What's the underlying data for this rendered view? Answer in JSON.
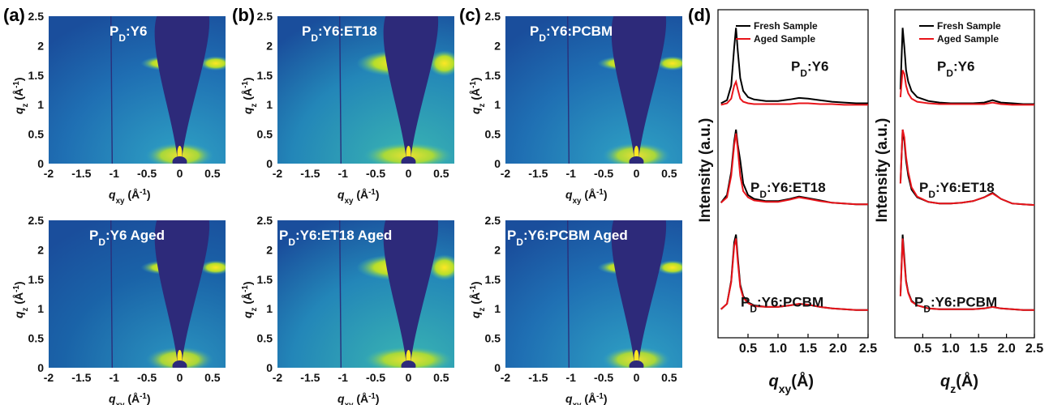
{
  "panel_labels": {
    "a": "(a)",
    "b": "(b)",
    "c": "(c)",
    "d": "(d)"
  },
  "map_axes": {
    "x_ticks": [
      "-2",
      "-1.5",
      "-1",
      "-0.5",
      "0",
      "0.5"
    ],
    "y_ticks": [
      "0",
      "0.5",
      "1",
      "1.5",
      "2",
      "2.5"
    ],
    "xlabel_main": "q",
    "xlabel_sub": "xy",
    "xlabel_unit": " (Å",
    "xlabel_exp": "-1",
    "xlabel_close": ")",
    "ylabel_main": "q",
    "ylabel_sub": "z",
    "ylabel_unit": " (Å",
    "ylabel_exp": "-1",
    "ylabel_close": ")"
  },
  "maps": [
    {
      "title_a": "P",
      "title_sub": "D",
      "title_b": ":Y6",
      "colors": {
        "bg": "#1f6fb3",
        "edge": "#2fa3c4",
        "mask": "#2d2a7a",
        "hot": "#fde724"
      }
    },
    {
      "title_a": "P",
      "title_sub": "D",
      "title_b": ":Y6:ET18",
      "colors": {
        "bg": "#2386b8",
        "edge": "#3ab6b2",
        "mask": "#2d2a7a",
        "hot": "#fde724"
      }
    },
    {
      "title_a": "P",
      "title_sub": "D",
      "title_b": ":Y6:PCBM",
      "colors": {
        "bg": "#1f6fb3",
        "edge": "#2fa3c4",
        "mask": "#2d2a7a",
        "hot": "#fde724"
      }
    },
    {
      "title_a": "P",
      "title_sub": "D",
      "title_b": ":Y6  Aged",
      "colors": {
        "bg": "#1a63a8",
        "edge": "#2b96c0",
        "mask": "#2d2a7a",
        "hot": "#fde724"
      }
    },
    {
      "title_a": "P",
      "title_sub": "D",
      "title_b": ":Y6:ET18  Aged",
      "colors": {
        "bg": "#2386b8",
        "edge": "#3ab6b2",
        "mask": "#2d2a7a",
        "hot": "#fde724"
      }
    },
    {
      "title_a": "P",
      "title_sub": "D",
      "title_b": ":Y6:PCBM Aged",
      "colors": {
        "bg": "#1f6fb3",
        "edge": "#2fa3c4",
        "mask": "#2d2a7a",
        "hot": "#fde724"
      }
    }
  ],
  "chart_data": [
    {
      "type": "line",
      "panel": "(d) left",
      "xlabel": "qxy(Å)",
      "ylabel": "Intensity (a.u.)",
      "xlim": [
        0,
        2.5
      ],
      "x_ticks": [
        "0.5",
        "1.0",
        "1.5",
        "2.0",
        "2.5"
      ],
      "legend": [
        "Fresh Sample",
        "Aged Sample"
      ],
      "colors": {
        "fresh": "#000000",
        "aged": "#e8141a"
      },
      "stacks": [
        {
          "label_a": "P",
          "label_sub": "D",
          "label_b": ":Y6",
          "fresh": {
            "x": [
              0.05,
              0.15,
              0.22,
              0.27,
              0.3,
              0.33,
              0.37,
              0.42,
              0.5,
              0.6,
              0.8,
              1.0,
              1.2,
              1.35,
              1.5,
              1.7,
              1.9,
              2.1,
              2.3,
              2.5
            ],
            "y": [
              0.02,
              0.06,
              0.25,
              0.75,
              1.0,
              0.7,
              0.35,
              0.18,
              0.1,
              0.07,
              0.05,
              0.05,
              0.07,
              0.09,
              0.08,
              0.06,
              0.04,
              0.03,
              0.02,
              0.02
            ]
          },
          "aged": {
            "x": [
              0.05,
              0.15,
              0.22,
              0.27,
              0.3,
              0.33,
              0.37,
              0.42,
              0.5,
              0.6,
              0.8,
              1.0,
              1.2,
              1.35,
              1.5,
              1.7,
              1.9,
              2.1,
              2.3,
              2.5
            ],
            "y": [
              0.0,
              0.02,
              0.08,
              0.25,
              0.3,
              0.2,
              0.08,
              0.04,
              0.02,
              0.01,
              0.01,
              0.01,
              0.01,
              0.02,
              0.02,
              0.01,
              0.01,
              0.0,
              0.0,
              0.0
            ]
          }
        },
        {
          "label_a": "P",
          "label_sub": "D",
          "label_b": ":Y6:ET18",
          "fresh": {
            "x": [
              0.05,
              0.15,
              0.22,
              0.27,
              0.3,
              0.33,
              0.37,
              0.42,
              0.5,
              0.6,
              0.8,
              1.0,
              1.2,
              1.35,
              1.5,
              1.7,
              1.9,
              2.1,
              2.3,
              2.5
            ],
            "y": [
              0.05,
              0.15,
              0.45,
              0.85,
              1.0,
              0.8,
              0.6,
              0.3,
              0.15,
              0.1,
              0.07,
              0.07,
              0.1,
              0.13,
              0.11,
              0.08,
              0.05,
              0.04,
              0.03,
              0.03
            ]
          },
          "aged": {
            "x": [
              0.05,
              0.15,
              0.22,
              0.27,
              0.3,
              0.33,
              0.37,
              0.42,
              0.5,
              0.6,
              0.8,
              1.0,
              1.2,
              1.35,
              1.5,
              1.7,
              1.9,
              2.1,
              2.3,
              2.5
            ],
            "y": [
              0.05,
              0.12,
              0.4,
              0.8,
              0.95,
              0.75,
              0.4,
              0.2,
              0.12,
              0.08,
              0.06,
              0.06,
              0.09,
              0.12,
              0.1,
              0.07,
              0.05,
              0.04,
              0.03,
              0.03
            ]
          }
        },
        {
          "label_a": "P",
          "label_sub": "D",
          "label_b": ":Y6:PCBM",
          "fresh": {
            "x": [
              0.05,
              0.15,
              0.22,
              0.27,
              0.3,
              0.33,
              0.37,
              0.42,
              0.5,
              0.6,
              0.8,
              1.0,
              1.2,
              1.35,
              1.5,
              1.7,
              1.9,
              2.1,
              2.3,
              2.5
            ],
            "y": [
              0.03,
              0.1,
              0.4,
              0.9,
              1.0,
              0.7,
              0.35,
              0.2,
              0.12,
              0.08,
              0.06,
              0.06,
              0.08,
              0.1,
              0.09,
              0.06,
              0.04,
              0.03,
              0.02,
              0.02
            ]
          },
          "aged": {
            "x": [
              0.05,
              0.15,
              0.22,
              0.27,
              0.3,
              0.33,
              0.37,
              0.42,
              0.5,
              0.6,
              0.8,
              1.0,
              1.2,
              1.35,
              1.5,
              1.7,
              1.9,
              2.1,
              2.3,
              2.5
            ],
            "y": [
              0.03,
              0.1,
              0.38,
              0.85,
              0.95,
              0.65,
              0.32,
              0.18,
              0.11,
              0.07,
              0.06,
              0.06,
              0.08,
              0.1,
              0.09,
              0.06,
              0.04,
              0.03,
              0.02,
              0.02
            ]
          }
        }
      ]
    },
    {
      "type": "line",
      "panel": "(d) right",
      "xlabel": "qz(Å)",
      "ylabel": "Intensity (a.u.)",
      "xlim": [
        0,
        2.5
      ],
      "x_ticks": [
        "0.5",
        "1.0",
        "1.5",
        "2.0",
        "2.5"
      ],
      "legend": [
        "Fresh Sample",
        "Aged Sample"
      ],
      "colors": {
        "fresh": "#000000",
        "aged": "#e8141a"
      },
      "stacks": [
        {
          "label_a": "P",
          "label_sub": "D",
          "label_b": ":Y6",
          "fresh": {
            "x": [
              0.1,
              0.14,
              0.17,
              0.2,
              0.24,
              0.3,
              0.4,
              0.6,
              0.8,
              1.0,
              1.2,
              1.4,
              1.6,
              1.75,
              1.9,
              2.1,
              2.3,
              2.5
            ],
            "y": [
              0.2,
              1.0,
              0.75,
              0.45,
              0.3,
              0.18,
              0.1,
              0.05,
              0.03,
              0.02,
              0.02,
              0.02,
              0.03,
              0.06,
              0.03,
              0.02,
              0.01,
              0.01
            ]
          },
          "aged": {
            "x": [
              0.1,
              0.14,
              0.17,
              0.2,
              0.24,
              0.3,
              0.4,
              0.6,
              0.8,
              1.0,
              1.2,
              1.4,
              1.6,
              1.75,
              1.9,
              2.1,
              2.3,
              2.5
            ],
            "y": [
              0.1,
              0.45,
              0.4,
              0.25,
              0.15,
              0.08,
              0.04,
              0.02,
              0.01,
              0.01,
              0.01,
              0.01,
              0.01,
              0.03,
              0.01,
              0.0,
              0.0,
              0.0
            ]
          }
        },
        {
          "label_a": "P",
          "label_sub": "D",
          "label_b": ":Y6:ET18",
          "fresh": {
            "x": [
              0.1,
              0.14,
              0.17,
              0.2,
              0.24,
              0.3,
              0.4,
              0.6,
              0.8,
              1.0,
              1.2,
              1.4,
              1.6,
              1.75,
              1.9,
              2.1,
              2.3,
              2.5
            ],
            "y": [
              0.3,
              1.0,
              0.85,
              0.6,
              0.4,
              0.22,
              0.12,
              0.06,
              0.04,
              0.04,
              0.05,
              0.07,
              0.12,
              0.18,
              0.1,
              0.04,
              0.03,
              0.02
            ]
          },
          "aged": {
            "x": [
              0.1,
              0.14,
              0.17,
              0.2,
              0.24,
              0.3,
              0.4,
              0.6,
              0.8,
              1.0,
              1.2,
              1.4,
              1.6,
              1.75,
              1.9,
              2.1,
              2.3,
              2.5
            ],
            "y": [
              0.3,
              1.0,
              0.9,
              0.65,
              0.45,
              0.25,
              0.13,
              0.06,
              0.04,
              0.04,
              0.05,
              0.07,
              0.12,
              0.17,
              0.1,
              0.04,
              0.03,
              0.02
            ]
          }
        },
        {
          "label_a": "P",
          "label_sub": "D",
          "label_b": ":Y6:PCBM",
          "fresh": {
            "x": [
              0.1,
              0.14,
              0.17,
              0.2,
              0.24,
              0.3,
              0.4,
              0.6,
              0.8,
              1.0,
              1.2,
              1.4,
              1.6,
              1.75,
              1.9,
              2.1,
              2.3,
              2.5
            ],
            "y": [
              0.2,
              1.0,
              0.7,
              0.4,
              0.25,
              0.14,
              0.08,
              0.04,
              0.03,
              0.03,
              0.03,
              0.03,
              0.04,
              0.06,
              0.04,
              0.03,
              0.02,
              0.02
            ]
          },
          "aged": {
            "x": [
              0.1,
              0.14,
              0.17,
              0.2,
              0.24,
              0.3,
              0.4,
              0.6,
              0.8,
              1.0,
              1.2,
              1.4,
              1.6,
              1.75,
              1.9,
              2.1,
              2.3,
              2.5
            ],
            "y": [
              0.2,
              0.95,
              0.65,
              0.38,
              0.24,
              0.13,
              0.08,
              0.04,
              0.03,
              0.03,
              0.03,
              0.03,
              0.04,
              0.06,
              0.04,
              0.03,
              0.02,
              0.02
            ]
          }
        }
      ]
    }
  ]
}
